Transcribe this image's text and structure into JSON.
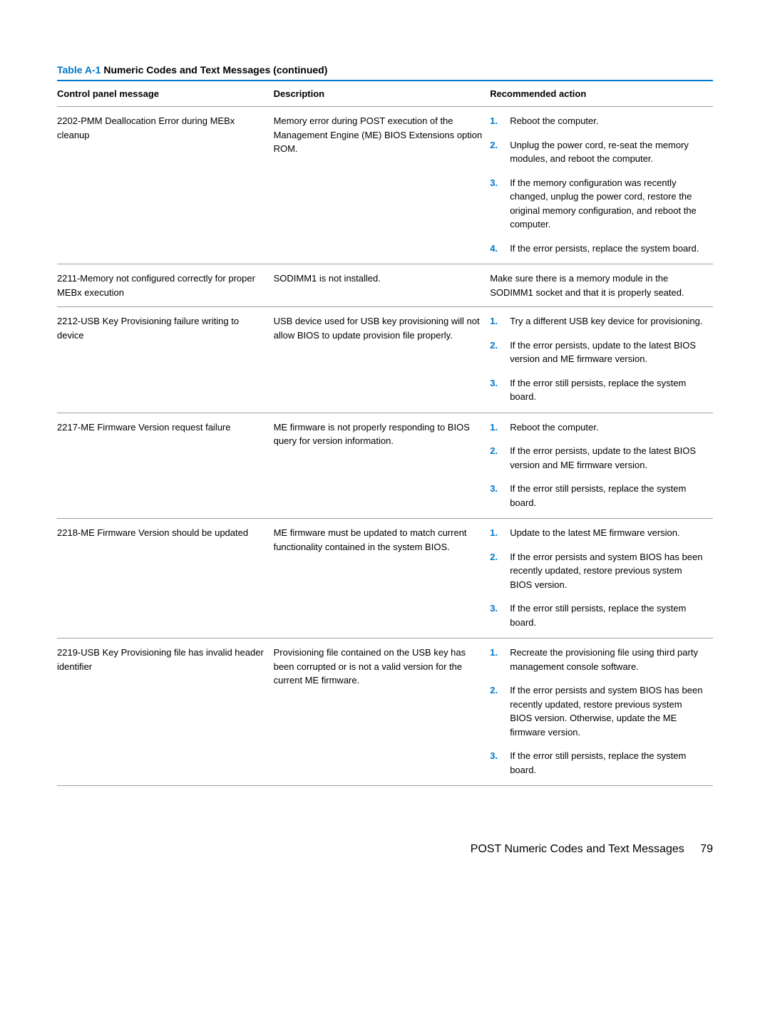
{
  "caption": {
    "link": "Table A-1",
    "title": "  Numeric Codes and Text Messages (continued)"
  },
  "headers": {
    "message": "Control panel message",
    "description": "Description",
    "action": "Recommended action"
  },
  "rows": [
    {
      "message": "2202-PMM Deallocation Error during MEBx cleanup",
      "description": "Memory error during POST execution of the Management Engine (ME) BIOS Extensions option ROM.",
      "action_type": "list",
      "actions": [
        "Reboot the computer.",
        "Unplug the power cord, re-seat the memory modules, and reboot the computer.",
        "If the memory configuration was recently changed, unplug the power cord, restore the original memory configuration, and reboot the computer.",
        "If the error persists, replace the system board."
      ]
    },
    {
      "message": "2211-Memory not configured correctly for proper MEBx execution",
      "description": "SODIMM1 is not installed.",
      "action_type": "text",
      "action_text": "Make sure there is a memory module in the SODIMM1 socket and that it is properly seated."
    },
    {
      "message": "2212-USB Key Provisioning failure writing to device",
      "description": "USB device used for USB key provisioning will not allow BIOS to update provision file properly.",
      "action_type": "list",
      "actions": [
        "Try a different USB key device for provisioning.",
        "If the error persists, update to the latest BIOS version and ME firmware version.",
        "If the error still persists, replace the system board."
      ]
    },
    {
      "message": "2217-ME Firmware Version request failure",
      "description": "ME firmware is not properly responding to BIOS query for version information.",
      "action_type": "list",
      "actions": [
        "Reboot the computer.",
        "If the error persists, update to the latest BIOS version and ME firmware version.",
        "If the error still persists, replace the system board."
      ]
    },
    {
      "message": "2218-ME Firmware Version should be updated",
      "description": "ME firmware must be updated to match current functionality contained in the system BIOS.",
      "action_type": "list",
      "actions": [
        "Update to the latest ME firmware version.",
        "If the error persists and system BIOS has been recently updated, restore previous system BIOS version.",
        "If the error still persists, replace the system board."
      ]
    },
    {
      "message": "2219-USB Key Provisioning file has invalid header identifier",
      "description": "Provisioning file contained on the USB key has been corrupted or is not a valid version for the current ME firmware.",
      "action_type": "list",
      "actions": [
        "Recreate the provisioning file using third party management console software.",
        "If the error persists and system BIOS has been recently updated, restore previous system BIOS version. Otherwise, update the ME firmware version.",
        "If the error still persists, replace the system board."
      ]
    }
  ],
  "footer": {
    "title": "POST Numeric Codes and Text Messages",
    "page": "79"
  },
  "colors": {
    "accent": "#0077c8",
    "rule": "#9e9e9e",
    "text": "#000000",
    "background": "#ffffff"
  }
}
